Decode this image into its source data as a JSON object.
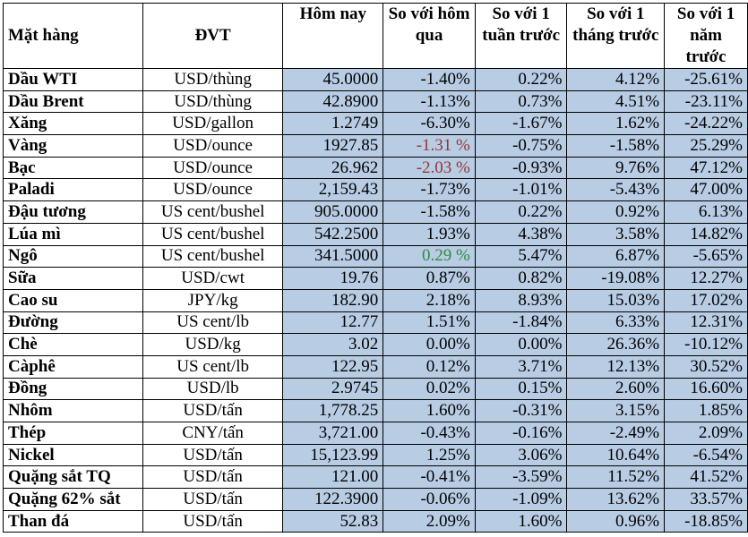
{
  "table": {
    "headers": {
      "item": "Mặt hàng",
      "unit": "ĐVT",
      "today": "Hôm nay",
      "vs_yesterday": "So với hôm qua",
      "vs_week": "So với 1 tuần trước",
      "vs_month": "So với 1 tháng trước",
      "vs_year": "So với 1 năm trước"
    },
    "highlight_colors": {
      "cell_background": "#b8cce4",
      "negative_highlight": "#953735",
      "positive_highlight": "#2e8b3e"
    },
    "rows": [
      {
        "name": "Dầu WTI",
        "unit": "USD/thùng",
        "today": "45.0000",
        "d1": "-1.40%",
        "w1": "0.22%",
        "m1": "4.12%",
        "y1": "-25.61%"
      },
      {
        "name": "Dầu Brent",
        "unit": "USD/thùng",
        "today": "42.8900",
        "d1": "-1.13%",
        "w1": "0.73%",
        "m1": "4.51%",
        "y1": "-23.11%"
      },
      {
        "name": "Xăng",
        "unit": "USD/gallon",
        "today": "1.2749",
        "d1": "-6.30%",
        "w1": "-1.67%",
        "m1": "1.62%",
        "y1": "-24.22%"
      },
      {
        "name": "Vàng",
        "unit": "USD/ounce",
        "today": "1927.85",
        "d1": "-1.31 %",
        "w1": "-0.75%",
        "m1": "-1.58%",
        "y1": "25.29%"
      },
      {
        "name": "Bạc",
        "unit": "USD/ounce",
        "today": "26.962",
        "d1": "-2.03 %",
        "w1": "-0.93%",
        "m1": "9.76%",
        "y1": "47.12%"
      },
      {
        "name": "Paladi",
        "unit": "USD/ounce",
        "today": "2,159.43",
        "d1": "-1.73%",
        "w1": "-1.01%",
        "m1": "-5.43%",
        "y1": "47.00%"
      },
      {
        "name": "Đậu tương",
        "unit": "US cent/bushel",
        "today": "905.0000",
        "d1": "-1.58%",
        "w1": "0.22%",
        "m1": "0.92%",
        "y1": "6.13%"
      },
      {
        "name": "Lúa mì",
        "unit": "US cent/bushel",
        "today": "542.2500",
        "d1": "1.93%",
        "w1": "4.38%",
        "m1": "3.58%",
        "y1": "14.82%"
      },
      {
        "name": "Ngô",
        "unit": "US cent/bushel",
        "today": "341.5000",
        "d1": "0.29 %",
        "w1": "5.47%",
        "m1": "6.87%",
        "y1": "-5.65%"
      },
      {
        "name": "Sữa",
        "unit": "USD/cwt",
        "today": "19.76",
        "d1": "0.87%",
        "w1": "0.82%",
        "m1": "-19.08%",
        "y1": "12.27%"
      },
      {
        "name": "Cao su",
        "unit": "JPY/kg",
        "today": "182.90",
        "d1": "2.18%",
        "w1": "8.93%",
        "m1": "15.03%",
        "y1": "17.02%"
      },
      {
        "name": "Đường",
        "unit": "US cent/lb",
        "today": "12.77",
        "d1": "1.51%",
        "w1": "-1.84%",
        "m1": "6.33%",
        "y1": "12.31%"
      },
      {
        "name": "Chè",
        "unit": "USD/kg",
        "today": "3.02",
        "d1": "0.00%",
        "w1": "0.00%",
        "m1": "26.36%",
        "y1": "-10.12%"
      },
      {
        "name": "Càphê",
        "unit": "US cent/lb",
        "today": "122.95",
        "d1": "0.12%",
        "w1": "3.71%",
        "m1": "12.13%",
        "y1": "30.52%"
      },
      {
        "name": "Đồng",
        "unit": "USD/lb",
        "today": "2.9745",
        "d1": "0.02%",
        "w1": "0.15%",
        "m1": "2.60%",
        "y1": "16.60%"
      },
      {
        "name": "Nhôm",
        "unit": "USD/tấn",
        "today": "1,778.25",
        "d1": "1.60%",
        "w1": "-0.31%",
        "m1": "3.15%",
        "y1": "1.85%"
      },
      {
        "name": "Thép",
        "unit": "CNY/tấn",
        "today": "3,721.00",
        "d1": "-0.43%",
        "w1": "-0.16%",
        "m1": "-2.49%",
        "y1": "2.09%"
      },
      {
        "name": "Nickel",
        "unit": "USD/tấn",
        "today": "15,123.99",
        "d1": "1.25%",
        "w1": "3.06%",
        "m1": "10.64%",
        "y1": "-6.54%"
      },
      {
        "name": "Quặng sắt TQ",
        "unit": "USD/tấn",
        "today": "121.00",
        "d1": "-0.41%",
        "w1": "-3.59%",
        "m1": "11.52%",
        "y1": "41.52%"
      },
      {
        "name": "Quặng 62% sắt",
        "unit": "USD/tấn",
        "today": "122.3900",
        "d1": "-0.06%",
        "w1": "-1.09%",
        "m1": "13.62%",
        "y1": "33.57%"
      },
      {
        "name": "Than đá",
        "unit": "USD/tấn",
        "today": "52.83",
        "d1": "2.09%",
        "w1": "1.60%",
        "m1": "0.96%",
        "y1": "-18.85%"
      }
    ]
  }
}
